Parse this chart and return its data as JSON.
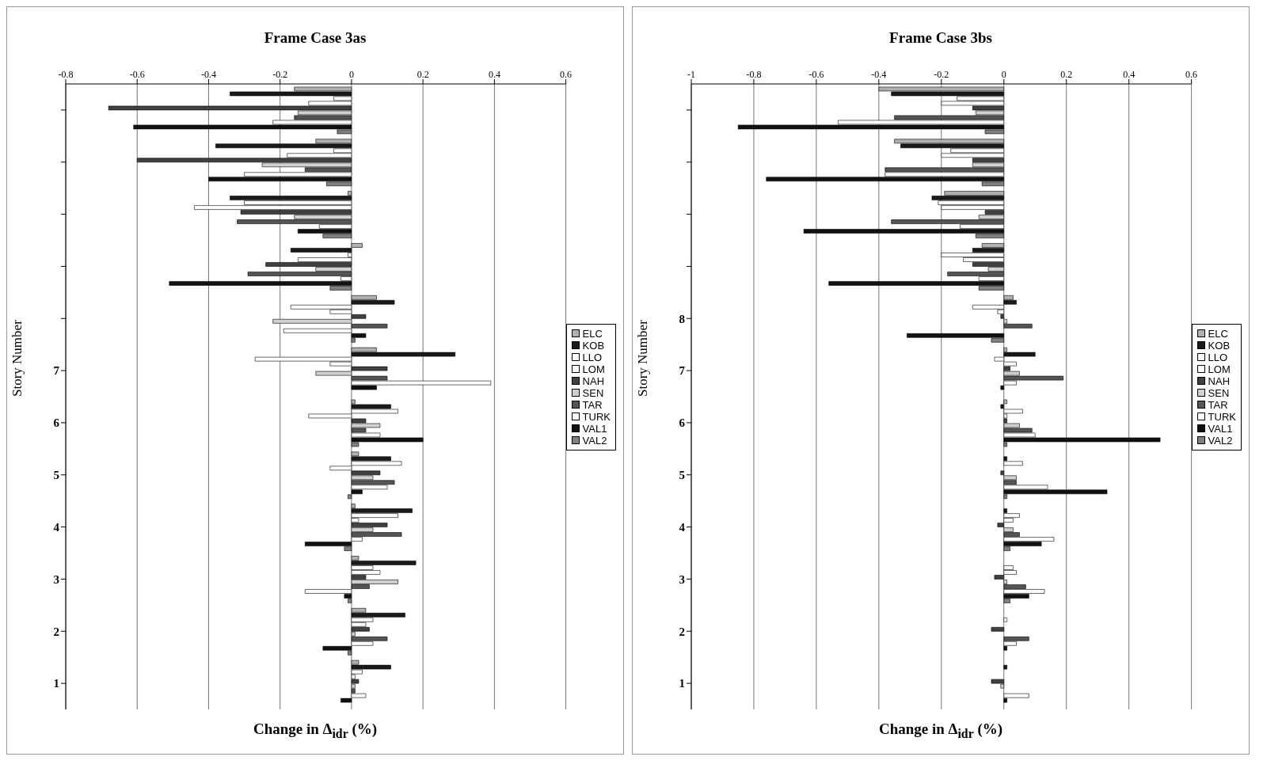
{
  "chart_data": [
    {
      "type": "bar",
      "orientation": "horizontal",
      "title": "Frame Case 3as",
      "xlabel": "Change in Δ$_{idr}$ (%)",
      "ylabel": "Story Number",
      "categories": [
        null,
        null,
        null,
        null,
        null,
        "7",
        "6",
        "5",
        "4",
        "3",
        "2",
        "1"
      ],
      "xlim": [
        -0.8,
        0.6
      ],
      "xticks": [
        -0.8,
        -0.6,
        -0.4,
        -0.2,
        0,
        0.2,
        0.4,
        0.6
      ],
      "grid": "x",
      "legend": "right",
      "series": [
        {
          "name": "ELC",
          "color": "#b0b0b0",
          "values": [
            -0.16,
            -0.1,
            -0.01,
            0.03,
            0.07,
            0.07,
            0.01,
            0.02,
            0.01,
            0.02,
            0.04,
            0.02
          ]
        },
        {
          "name": "KOB",
          "color": "#1a1a1a",
          "values": [
            -0.34,
            -0.38,
            -0.34,
            -0.17,
            0.12,
            0.29,
            0.11,
            0.11,
            0.17,
            0.18,
            0.15,
            0.11
          ]
        },
        {
          "name": "LLO",
          "color": "#ffffff",
          "values": [
            -0.05,
            -0.05,
            -0.3,
            -0.01,
            -0.17,
            -0.27,
            0.13,
            0.14,
            0.13,
            0.06,
            0.06,
            0.03
          ]
        },
        {
          "name": "LOM",
          "color": "#ffffff",
          "values": [
            -0.12,
            -0.18,
            -0.44,
            -0.15,
            -0.06,
            -0.06,
            -0.12,
            -0.06,
            0.02,
            0.08,
            0.04,
            0.01
          ]
        },
        {
          "name": "NAH",
          "color": "#404040",
          "values": [
            -0.68,
            -0.6,
            -0.31,
            -0.24,
            0.04,
            0.1,
            0.04,
            0.08,
            0.1,
            0.04,
            0.05,
            0.02
          ]
        },
        {
          "name": "SEN",
          "color": "#d0d0d0",
          "values": [
            -0.15,
            -0.25,
            -0.16,
            -0.1,
            -0.22,
            -0.1,
            0.08,
            0.06,
            0.06,
            0.13,
            0.01,
            0.01
          ]
        },
        {
          "name": "TAR",
          "color": "#555555",
          "values": [
            -0.16,
            -0.13,
            -0.32,
            -0.29,
            0.1,
            0.1,
            0.04,
            0.12,
            0.14,
            0.05,
            0.1,
            0.01
          ]
        },
        {
          "name": "TURK",
          "color": "#ffffff",
          "values": [
            -0.22,
            -0.3,
            -0.09,
            -0.03,
            -0.19,
            0.39,
            0.08,
            0.1,
            0.03,
            -0.13,
            0.06,
            0.04
          ]
        },
        {
          "name": "VAL1",
          "color": "#111111",
          "values": [
            -0.61,
            -0.4,
            -0.15,
            -0.51,
            0.04,
            0.07,
            0.2,
            0.03,
            -0.13,
            -0.02,
            -0.08,
            -0.03
          ]
        },
        {
          "name": "VAL2",
          "color": "#808080",
          "values": [
            -0.04,
            -0.07,
            -0.08,
            -0.06,
            0.01,
            0.0,
            0.02,
            -0.01,
            -0.02,
            -0.01,
            -0.01,
            0.0
          ]
        }
      ]
    },
    {
      "type": "bar",
      "orientation": "horizontal",
      "title": "Frame Case 3bs",
      "xlabel": "Change in Δ$_{idr}$ (%)",
      "ylabel": "Story Number",
      "categories": [
        null,
        null,
        null,
        null,
        "8",
        "7",
        "6",
        "5",
        "4",
        "3",
        "2",
        "1"
      ],
      "xlim": [
        -1,
        0.6
      ],
      "xticks": [
        -1,
        -0.8,
        -0.6,
        -0.4,
        -0.2,
        0,
        0.2,
        0.4,
        0.6
      ],
      "grid": "x",
      "legend": "right",
      "series": [
        {
          "name": "ELC",
          "color": "#b0b0b0",
          "values": [
            -0.4,
            -0.35,
            -0.19,
            -0.07,
            0.03,
            0.01,
            0.01,
            0.0,
            0.0,
            0.0,
            0.0,
            0.0
          ]
        },
        {
          "name": "KOB",
          "color": "#1a1a1a",
          "values": [
            -0.36,
            -0.33,
            -0.23,
            -0.1,
            0.04,
            0.1,
            -0.01,
            0.01,
            0.01,
            0.0,
            0.0,
            0.01
          ]
        },
        {
          "name": "LLO",
          "color": "#ffffff",
          "values": [
            -0.15,
            -0.17,
            -0.21,
            -0.2,
            -0.1,
            -0.03,
            0.06,
            0.06,
            0.05,
            0.03,
            0.01,
            0.0
          ]
        },
        {
          "name": "LOM",
          "color": "#ffffff",
          "values": [
            -0.2,
            -0.2,
            -0.2,
            -0.13,
            -0.02,
            0.04,
            0.01,
            0.0,
            0.03,
            0.04,
            0.0,
            0.0
          ]
        },
        {
          "name": "NAH",
          "color": "#404040",
          "values": [
            -0.1,
            -0.1,
            -0.06,
            -0.1,
            -0.01,
            0.02,
            0.01,
            -0.01,
            -0.02,
            -0.03,
            -0.04,
            -0.04
          ]
        },
        {
          "name": "SEN",
          "color": "#d0d0d0",
          "values": [
            -0.09,
            -0.1,
            -0.08,
            -0.05,
            0.01,
            0.05,
            0.05,
            0.04,
            0.03,
            0.01,
            0.0,
            -0.01
          ]
        },
        {
          "name": "TAR",
          "color": "#555555",
          "values": [
            -0.35,
            -0.38,
            -0.36,
            -0.18,
            0.09,
            0.19,
            0.09,
            0.04,
            0.05,
            0.07,
            0.08,
            0.0
          ]
        },
        {
          "name": "TURK",
          "color": "#ffffff",
          "values": [
            -0.53,
            -0.38,
            -0.14,
            -0.08,
            0.0,
            0.04,
            0.1,
            0.14,
            0.16,
            0.13,
            0.04,
            0.08
          ]
        },
        {
          "name": "VAL1",
          "color": "#111111",
          "values": [
            -0.85,
            -0.76,
            -0.64,
            -0.56,
            -0.31,
            -0.01,
            0.5,
            0.33,
            0.12,
            0.08,
            0.01,
            0.01
          ]
        },
        {
          "name": "VAL2",
          "color": "#808080",
          "values": [
            -0.06,
            -0.07,
            -0.09,
            -0.08,
            -0.04,
            0.0,
            0.01,
            0.01,
            0.02,
            0.02,
            0.0,
            0.0
          ]
        }
      ]
    }
  ]
}
